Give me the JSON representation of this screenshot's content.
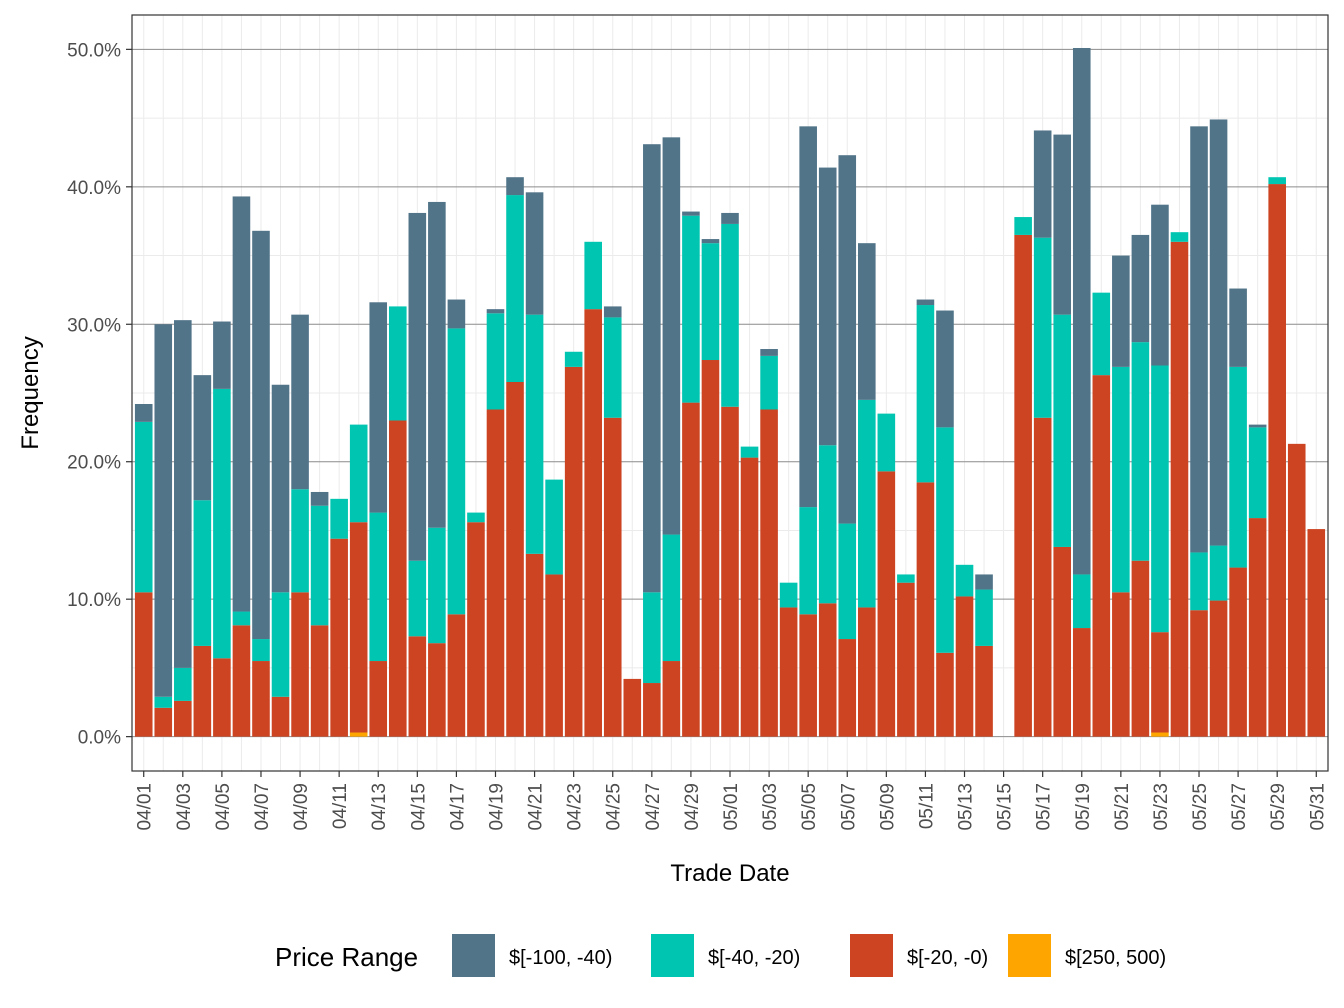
{
  "chart_data": {
    "type": "bar",
    "stacked": true,
    "xlabel": "Trade Date",
    "ylabel": "Frequency",
    "ylim": [
      -0.025,
      0.525
    ],
    "y_ticks": [
      0,
      0.1,
      0.2,
      0.3,
      0.4,
      0.5
    ],
    "y_tick_labels": [
      "0.0%",
      "10.0%",
      "20.0%",
      "30.0%",
      "40.0%",
      "50.0%"
    ],
    "x_tick_labels": [
      "04/01",
      "04/03",
      "04/05",
      "04/07",
      "04/09",
      "04/11",
      "04/13",
      "04/15",
      "04/17",
      "04/19",
      "04/21",
      "04/23",
      "04/25",
      "04/27",
      "04/29",
      "05/01",
      "05/03",
      "05/05",
      "05/07",
      "05/09",
      "05/11",
      "05/13",
      "05/15",
      "05/17",
      "05/19",
      "05/21",
      "05/23",
      "05/25",
      "05/27",
      "05/29",
      "05/31"
    ],
    "categories": [
      "04/01",
      "04/02",
      "04/03",
      "04/04",
      "04/05",
      "04/06",
      "04/07",
      "04/08",
      "04/09",
      "04/10",
      "04/11",
      "04/12",
      "04/13",
      "04/14",
      "04/15",
      "04/16",
      "04/17",
      "04/18",
      "04/19",
      "04/20",
      "04/21",
      "04/22",
      "04/23",
      "04/24",
      "04/25",
      "04/26",
      "04/27",
      "04/28",
      "04/29",
      "04/30",
      "05/01",
      "05/02",
      "05/03",
      "05/04",
      "05/05",
      "05/06",
      "05/07",
      "05/08",
      "05/09",
      "05/10",
      "05/11",
      "05/12",
      "05/13",
      "05/14",
      "05/15",
      "05/16",
      "05/17",
      "05/18",
      "05/19",
      "05/20",
      "05/21",
      "05/22",
      "05/23",
      "05/24",
      "05/25",
      "05/26",
      "05/27",
      "05/28",
      "05/29",
      "05/30",
      "05/31"
    ],
    "grid": true,
    "legend": {
      "title": "Price Range",
      "position": "bottom"
    },
    "series": [
      {
        "name": "$[250, 500)",
        "color": "#FFA500",
        "values": [
          0,
          0,
          0,
          0,
          0,
          0,
          0,
          0,
          0,
          0,
          0,
          0.003,
          0,
          0,
          0,
          0,
          0,
          0,
          0,
          0,
          0,
          0,
          0,
          0,
          0,
          0,
          0,
          0,
          0,
          0,
          0,
          0,
          0,
          0,
          0,
          0,
          0,
          0,
          0,
          0,
          0,
          0,
          0,
          0,
          0,
          0,
          0,
          0,
          0,
          0,
          0,
          0,
          0.003,
          0,
          0,
          0,
          0,
          0,
          0,
          0,
          0
        ]
      },
      {
        "name": "$[-20, -0)",
        "color": "#CC4422",
        "values": [
          0.105,
          0.021,
          0.026,
          0.066,
          0.057,
          0.081,
          0.055,
          0.029,
          0.105,
          0.081,
          0.144,
          0.153,
          0.055,
          0.23,
          0.073,
          0.068,
          0.089,
          0.156,
          0.238,
          0.258,
          0.133,
          0.118,
          0.269,
          0.311,
          0.232,
          0.042,
          0.039,
          0.055,
          0.243,
          0.274,
          0.24,
          0.203,
          0.238,
          0.094,
          0.089,
          0.097,
          0.071,
          0.094,
          0.193,
          0.112,
          0.185,
          0.061,
          0.102,
          0.066,
          0,
          0.365,
          0.232,
          0.138,
          0.079,
          0.263,
          0.105,
          0.128,
          0.073,
          0.36,
          0.092,
          0.099,
          0.123,
          0.159,
          0.402,
          0.213,
          0.151
        ]
      },
      {
        "name": "$[-40, -20)",
        "color": "#00C5B0",
        "values": [
          0.124,
          0.008,
          0.024,
          0.106,
          0.196,
          0.01,
          0.016,
          0.076,
          0.075,
          0.087,
          0.029,
          0.071,
          0.108,
          0.083,
          0.055,
          0.084,
          0.208,
          0.007,
          0.07,
          0.136,
          0.174,
          0.069,
          0.011,
          0.049,
          0.073,
          0,
          0.066,
          0.092,
          0.136,
          0.085,
          0.133,
          0.008,
          0.039,
          0.018,
          0.078,
          0.115,
          0.084,
          0.151,
          0.042,
          0.006,
          0.129,
          0.164,
          0.023,
          0.041,
          0,
          0.013,
          0.131,
          0.169,
          0.039,
          0.06,
          0.164,
          0.159,
          0.194,
          0.007,
          0.042,
          0.04,
          0.146,
          0.066,
          0.005,
          0,
          0
        ]
      },
      {
        "name": "$[-100, -40)",
        "color": "#517489",
        "values": [
          0.013,
          0.271,
          0.253,
          0.091,
          0.049,
          0.302,
          0.297,
          0.151,
          0.127,
          0.01,
          0,
          0,
          0.153,
          0,
          0.253,
          0.237,
          0.021,
          0,
          0.003,
          0.013,
          0.089,
          0,
          0,
          0,
          0.008,
          0,
          0.326,
          0.289,
          0.003,
          0.003,
          0.008,
          0,
          0.005,
          0,
          0.277,
          0.202,
          0.268,
          0.114,
          0,
          0,
          0.004,
          0.085,
          0,
          0.011,
          0,
          0,
          0.078,
          0.131,
          0.383,
          0,
          0.081,
          0.078,
          0.117,
          0,
          0.31,
          0.31,
          0.057,
          0.002,
          0,
          0,
          0
        ]
      }
    ]
  }
}
